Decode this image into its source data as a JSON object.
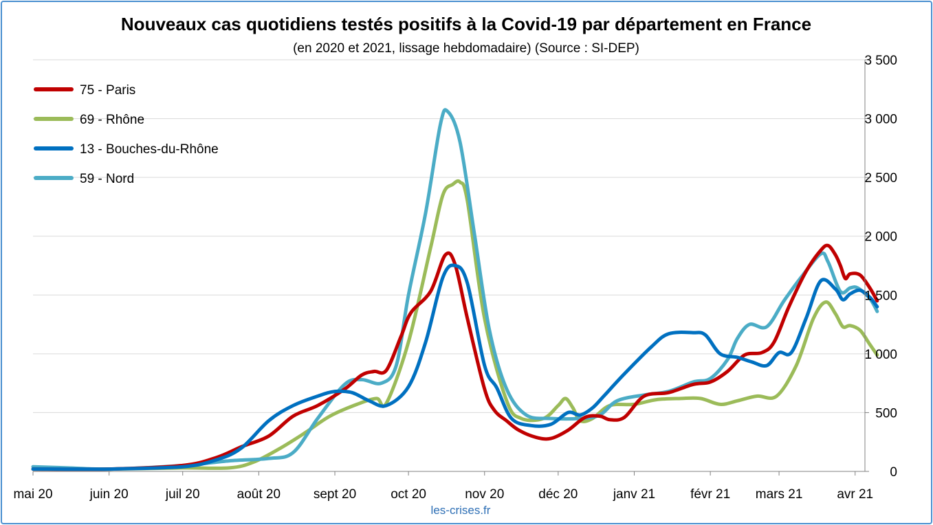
{
  "chart_data": {
    "type": "line",
    "title": "Nouveaux cas quotidiens testés positifs à la Covid-19 par département en France",
    "subtitle": "(en 2020 et 2021, lissage hebdomadaire) (Source : SI-DEP)",
    "xlabel": "",
    "ylabel": "",
    "y_axis_side": "right",
    "ylim": [
      0,
      3500
    ],
    "y_ticks": [
      0,
      500,
      1000,
      1500,
      2000,
      2500,
      3000,
      3500
    ],
    "y_tick_labels": [
      "0",
      "500",
      "1 000",
      "1 500",
      "2 000",
      "2 500",
      "3 000",
      "3 500"
    ],
    "x_range": [
      "2020-05-01",
      "2021-04-05"
    ],
    "x_ticks": [
      "2020-05-01",
      "2020-06-01",
      "2020-07-01",
      "2020-08-01",
      "2020-09-01",
      "2020-10-01",
      "2020-11-01",
      "2020-12-01",
      "2021-01-01",
      "2021-02-01",
      "2021-03-01",
      "2021-04-01"
    ],
    "x_tick_labels": [
      "mai 20",
      "juin 20",
      "juil 20",
      "août 20",
      "sept 20",
      "oct 20",
      "nov 20",
      "déc 20",
      "janv 21",
      "févr 21",
      "mars 21",
      "avr 21"
    ],
    "grid": "horizontal",
    "legend": "top-left",
    "series": [
      {
        "name": "75 - Paris",
        "color": "#c00000",
        "points": [
          [
            "2020-05-01",
            20
          ],
          [
            "2020-06-01",
            20
          ],
          [
            "2020-07-01",
            50
          ],
          [
            "2020-07-15",
            120
          ],
          [
            "2020-07-25",
            210
          ],
          [
            "2020-08-05",
            300
          ],
          [
            "2020-08-15",
            470
          ],
          [
            "2020-08-25",
            560
          ],
          [
            "2020-09-05",
            700
          ],
          [
            "2020-09-12",
            820
          ],
          [
            "2020-09-17",
            850
          ],
          [
            "2020-09-22",
            860
          ],
          [
            "2020-09-28",
            1150
          ],
          [
            "2020-10-02",
            1350
          ],
          [
            "2020-10-10",
            1530
          ],
          [
            "2020-10-16",
            1840
          ],
          [
            "2020-10-20",
            1760
          ],
          [
            "2020-10-25",
            1300
          ],
          [
            "2020-11-01",
            700
          ],
          [
            "2020-11-05",
            520
          ],
          [
            "2020-11-10",
            430
          ],
          [
            "2020-11-15",
            350
          ],
          [
            "2020-11-22",
            290
          ],
          [
            "2020-11-28",
            280
          ],
          [
            "2020-12-05",
            350
          ],
          [
            "2020-12-12",
            460
          ],
          [
            "2020-12-18",
            470
          ],
          [
            "2020-12-22",
            440
          ],
          [
            "2020-12-28",
            460
          ],
          [
            "2021-01-05",
            640
          ],
          [
            "2021-01-15",
            670
          ],
          [
            "2021-01-25",
            740
          ],
          [
            "2021-02-01",
            760
          ],
          [
            "2021-02-08",
            850
          ],
          [
            "2021-02-15",
            990
          ],
          [
            "2021-02-22",
            1010
          ],
          [
            "2021-02-27",
            1100
          ],
          [
            "2021-03-05",
            1400
          ],
          [
            "2021-03-12",
            1700
          ],
          [
            "2021-03-18",
            1880
          ],
          [
            "2021-03-21",
            1920
          ],
          [
            "2021-03-24",
            1840
          ],
          [
            "2021-03-26",
            1750
          ],
          [
            "2021-03-28",
            1640
          ],
          [
            "2021-03-30",
            1680
          ],
          [
            "2021-04-03",
            1670
          ],
          [
            "2021-04-07",
            1560
          ],
          [
            "2021-04-10",
            1450
          ]
        ]
      },
      {
        "name": "69 - Rhône",
        "color": "#9bbb59",
        "points": [
          [
            "2020-05-01",
            20
          ],
          [
            "2020-06-01",
            20
          ],
          [
            "2020-07-01",
            30
          ],
          [
            "2020-07-20",
            30
          ],
          [
            "2020-07-30",
            80
          ],
          [
            "2020-08-10",
            200
          ],
          [
            "2020-08-20",
            330
          ],
          [
            "2020-08-30",
            470
          ],
          [
            "2020-09-10",
            570
          ],
          [
            "2020-09-18",
            620
          ],
          [
            "2020-09-22",
            580
          ],
          [
            "2020-10-01",
            1100
          ],
          [
            "2020-10-10",
            1900
          ],
          [
            "2020-10-15",
            2350
          ],
          [
            "2020-10-19",
            2440
          ],
          [
            "2020-10-22",
            2460
          ],
          [
            "2020-10-25",
            2300
          ],
          [
            "2020-11-01",
            1300
          ],
          [
            "2020-11-10",
            600
          ],
          [
            "2020-11-16",
            450
          ],
          [
            "2020-11-25",
            450
          ],
          [
            "2020-12-01",
            560
          ],
          [
            "2020-12-04",
            620
          ],
          [
            "2020-12-07",
            540
          ],
          [
            "2020-12-10",
            430
          ],
          [
            "2020-12-15",
            450
          ],
          [
            "2020-12-22",
            560
          ],
          [
            "2021-01-01",
            570
          ],
          [
            "2021-01-10",
            610
          ],
          [
            "2021-01-20",
            620
          ],
          [
            "2021-01-28",
            620
          ],
          [
            "2021-02-05",
            570
          ],
          [
            "2021-02-12",
            600
          ],
          [
            "2021-02-20",
            640
          ],
          [
            "2021-02-28",
            640
          ],
          [
            "2021-03-08",
            900
          ],
          [
            "2021-03-15",
            1300
          ],
          [
            "2021-03-20",
            1440
          ],
          [
            "2021-03-24",
            1340
          ],
          [
            "2021-03-27",
            1230
          ],
          [
            "2021-03-30",
            1240
          ],
          [
            "2021-04-03",
            1200
          ],
          [
            "2021-04-07",
            1080
          ],
          [
            "2021-04-10",
            990
          ]
        ]
      },
      {
        "name": "13 - Bouches-du-Rhône",
        "color": "#0070c0",
        "points": [
          [
            "2020-05-01",
            20
          ],
          [
            "2020-06-01",
            20
          ],
          [
            "2020-07-01",
            40
          ],
          [
            "2020-07-15",
            100
          ],
          [
            "2020-07-25",
            200
          ],
          [
            "2020-08-05",
            430
          ],
          [
            "2020-08-15",
            560
          ],
          [
            "2020-08-25",
            640
          ],
          [
            "2020-09-01",
            680
          ],
          [
            "2020-09-08",
            670
          ],
          [
            "2020-09-15",
            600
          ],
          [
            "2020-09-22",
            560
          ],
          [
            "2020-10-01",
            720
          ],
          [
            "2020-10-08",
            1100
          ],
          [
            "2020-10-15",
            1650
          ],
          [
            "2020-10-20",
            1750
          ],
          [
            "2020-10-25",
            1600
          ],
          [
            "2020-11-01",
            900
          ],
          [
            "2020-11-06",
            710
          ],
          [
            "2020-11-12",
            450
          ],
          [
            "2020-11-20",
            390
          ],
          [
            "2020-11-28",
            400
          ],
          [
            "2020-12-05",
            500
          ],
          [
            "2020-12-10",
            480
          ],
          [
            "2020-12-15",
            540
          ],
          [
            "2020-12-20",
            650
          ],
          [
            "2020-12-28",
            830
          ],
          [
            "2021-01-08",
            1060
          ],
          [
            "2021-01-15",
            1170
          ],
          [
            "2021-01-25",
            1180
          ],
          [
            "2021-01-30",
            1160
          ],
          [
            "2021-02-05",
            1000
          ],
          [
            "2021-02-12",
            970
          ],
          [
            "2021-02-18",
            930
          ],
          [
            "2021-02-24",
            900
          ],
          [
            "2021-03-01",
            1010
          ],
          [
            "2021-03-06",
            1010
          ],
          [
            "2021-03-12",
            1300
          ],
          [
            "2021-03-18",
            1620
          ],
          [
            "2021-03-24",
            1550
          ],
          [
            "2021-03-27",
            1460
          ],
          [
            "2021-03-30",
            1510
          ],
          [
            "2021-04-03",
            1540
          ],
          [
            "2021-04-07",
            1480
          ],
          [
            "2021-04-10",
            1400
          ]
        ]
      },
      {
        "name": "59 - Nord",
        "color": "#4bacc6",
        "points": [
          [
            "2020-05-01",
            40
          ],
          [
            "2020-05-15",
            30
          ],
          [
            "2020-06-01",
            20
          ],
          [
            "2020-07-01",
            50
          ],
          [
            "2020-07-20",
            90
          ],
          [
            "2020-08-05",
            110
          ],
          [
            "2020-08-15",
            160
          ],
          [
            "2020-08-25",
            450
          ],
          [
            "2020-09-05",
            740
          ],
          [
            "2020-09-12",
            780
          ],
          [
            "2020-09-20",
            750
          ],
          [
            "2020-09-26",
            900
          ],
          [
            "2020-10-01",
            1500
          ],
          [
            "2020-10-08",
            2200
          ],
          [
            "2020-10-14",
            2950
          ],
          [
            "2020-10-17",
            3060
          ],
          [
            "2020-10-22",
            2800
          ],
          [
            "2020-10-28",
            2000
          ],
          [
            "2020-11-03",
            1200
          ],
          [
            "2020-11-10",
            700
          ],
          [
            "2020-11-18",
            480
          ],
          [
            "2020-11-28",
            450
          ],
          [
            "2020-12-10",
            450
          ],
          [
            "2020-12-18",
            480
          ],
          [
            "2020-12-25",
            600
          ],
          [
            "2021-01-05",
            650
          ],
          [
            "2021-01-15",
            680
          ],
          [
            "2021-01-25",
            760
          ],
          [
            "2021-02-01",
            790
          ],
          [
            "2021-02-08",
            950
          ],
          [
            "2021-02-12",
            1130
          ],
          [
            "2021-02-17",
            1250
          ],
          [
            "2021-02-24",
            1230
          ],
          [
            "2021-03-03",
            1450
          ],
          [
            "2021-03-10",
            1650
          ],
          [
            "2021-03-18",
            1850
          ],
          [
            "2021-03-21",
            1780
          ],
          [
            "2021-03-26",
            1530
          ],
          [
            "2021-03-30",
            1560
          ],
          [
            "2021-04-02",
            1560
          ],
          [
            "2021-04-07",
            1470
          ],
          [
            "2021-04-10",
            1360
          ]
        ]
      }
    ]
  },
  "footer": {
    "source_text": "les-crises.fr"
  }
}
